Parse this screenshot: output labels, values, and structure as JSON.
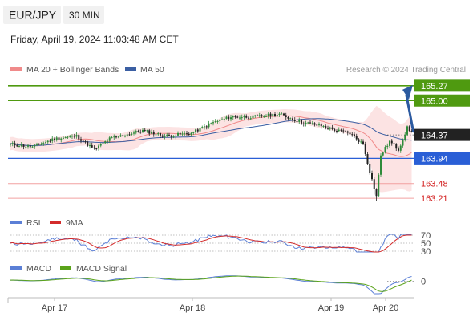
{
  "header": {
    "symbol": "EUR/JPY",
    "timeframe": "30 MIN",
    "datetime": "Friday, April 19, 2024 11:03:48 AM CET"
  },
  "legend": {
    "ma20_bb": "MA 20 + Bollinger Bands",
    "ma50": "MA 50",
    "rsi": "RSI",
    "rsi_ma": "9MA",
    "macd": "MACD",
    "macd_signal": "MACD Signal"
  },
  "credit": "Research © 2024 Trading Central",
  "colors": {
    "bb_fill": "#fbd9d9",
    "ma20": "#f08a8a",
    "ma50": "#3b5fa3",
    "up_candle": "#2e8b3a",
    "down_candle": "#222222",
    "resistance": "#4f9a10",
    "pivot": "#2a5fd6",
    "support": "#f2a0a0",
    "support_text": "#d21b1b",
    "last_price_bg": "#222222",
    "arrow": "#2b5aa0",
    "rsi": "#5b7fd6",
    "rsi_ma": "#d32b2b",
    "macd": "#5b7fd6",
    "macd_signal": "#5aa31a"
  },
  "chart_data": {
    "type": "candlestick",
    "x_ticks": [
      "Apr 17",
      "Apr 18",
      "Apr 19",
      "Apr 20"
    ],
    "price_ylim": [
      163.05,
      165.4
    ],
    "levels": [
      {
        "value": 165.27,
        "label": "165.27",
        "kind": "resistance"
      },
      {
        "value": 165.0,
        "label": "165.00",
        "kind": "resistance"
      },
      {
        "value": 164.37,
        "label": "164.37",
        "kind": "last"
      },
      {
        "value": 163.94,
        "label": "163.94",
        "kind": "pivot"
      },
      {
        "value": 163.48,
        "label": "163.48",
        "kind": "support"
      },
      {
        "value": 163.21,
        "label": "163.21",
        "kind": "support"
      }
    ],
    "price_anchors": [
      [
        0,
        164.2
      ],
      [
        10,
        164.15
      ],
      [
        20,
        164.3
      ],
      [
        30,
        164.35
      ],
      [
        38,
        164.1
      ],
      [
        45,
        164.3
      ],
      [
        60,
        164.45
      ],
      [
        70,
        164.35
      ],
      [
        82,
        164.4
      ],
      [
        92,
        164.6
      ],
      [
        100,
        164.7
      ],
      [
        110,
        164.7
      ],
      [
        122,
        164.75
      ],
      [
        132,
        164.6
      ],
      [
        140,
        164.55
      ],
      [
        148,
        164.45
      ],
      [
        154,
        164.4
      ],
      [
        160,
        164.2
      ],
      [
        163,
        163.7
      ],
      [
        165,
        163.4
      ],
      [
        166,
        163.25
      ],
      [
        168,
        164.0
      ],
      [
        172,
        164.25
      ],
      [
        176,
        164.1
      ],
      [
        180,
        164.5
      ],
      [
        182,
        164.42
      ]
    ],
    "rsi": {
      "levels": [
        70,
        50,
        30
      ],
      "ylim": [
        20,
        80
      ]
    },
    "macd": {
      "levels": [
        0
      ],
      "ylim": [
        -0.22,
        0.12
      ]
    },
    "forecast_target": 165.27
  }
}
